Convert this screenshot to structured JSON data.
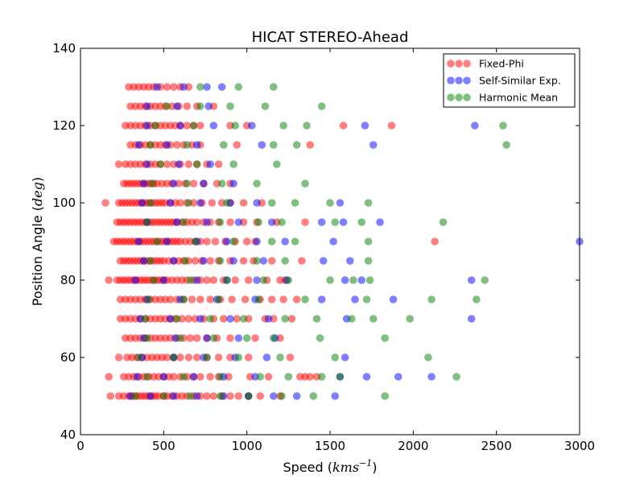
{
  "chart_data": {
    "type": "scatter",
    "title": "HICAT STEREO-Ahead",
    "xlabel": "Speed",
    "xlabel_unit": "kms",
    "xlabel_unit_exp": "−1",
    "ylabel": "Position Angle",
    "ylabel_unit": "deg",
    "xlim": [
      0,
      3000
    ],
    "ylim": [
      40,
      140
    ],
    "x_ticks": [
      "0",
      "500",
      "1000",
      "1500",
      "2000",
      "2500",
      "3000"
    ],
    "y_ticks": [
      "40",
      "60",
      "80",
      "100",
      "120",
      "140"
    ],
    "legend_position": "top-right",
    "grid": false,
    "series": [
      {
        "name": "Fixed-Phi",
        "color": "#ff0000",
        "rows": [
          {
            "y": 50,
            "x": [
              180,
              230,
              260,
              290,
              310,
              330,
              350,
              370,
              390,
              410,
              430,
              450,
              470,
              500,
              520,
              550,
              580,
              610,
              640,
              680,
              720,
              760,
              800,
              850,
              900,
              950,
              1010,
              1080,
              1200
            ]
          },
          {
            "y": 55,
            "x": [
              170,
              260,
              290,
              320,
              350,
              380,
              410,
              440,
              470,
              500,
              530,
              560,
              600,
              640,
              680,
              720,
              780,
              830,
              890,
              1020,
              1130,
              1320,
              1350,
              1380,
              1420
            ]
          },
          {
            "y": 60,
            "x": [
              230,
              280,
              310,
              340,
              370,
              400,
              430,
              460,
              490,
              520,
              560,
              600,
              650,
              700,
              760,
              830,
              900,
              1010,
              1260
            ]
          },
          {
            "y": 65,
            "x": [
              270,
              300,
              330,
              360,
              390,
              420,
              450,
              480,
              510,
              540,
              580,
              620,
              660,
              700,
              760,
              820,
              900,
              1050,
              1200
            ]
          },
          {
            "y": 70,
            "x": [
              240,
              270,
              300,
              330,
              360,
              390,
              420,
              450,
              480,
              510,
              540,
              570,
              610,
              650,
              690,
              740,
              800,
              860,
              940,
              1010,
              1110,
              1160,
              1270
            ]
          },
          {
            "y": 75,
            "x": [
              240,
              270,
              300,
              330,
              360,
              390,
              420,
              450,
              480,
              510,
              540,
              580,
              620,
              670,
              720,
              780,
              840,
              910,
              990,
              1080,
              1150,
              1220,
              1300
            ]
          },
          {
            "y": 80,
            "x": [
              170,
              220,
              240,
              260,
              280,
              300,
              320,
              340,
              360,
              380,
              400,
              420,
              440,
              460,
              480,
              500,
              520,
              550,
              580,
              610,
              640,
              680,
              720,
              760,
              800,
              860,
              930,
              1010,
              1120,
              1200,
              1230
            ]
          },
          {
            "y": 85,
            "x": [
              240,
              260,
              280,
              300,
              320,
              340,
              360,
              380,
              400,
              420,
              440,
              460,
              480,
              500,
              530,
              560,
              590,
              620,
              650,
              690,
              730,
              780,
              830,
              900,
              980,
              1040,
              1150,
              1330
            ]
          },
          {
            "y": 90,
            "x": [
              200,
              220,
              240,
              260,
              280,
              300,
              320,
              340,
              360,
              380,
              400,
              420,
              440,
              460,
              480,
              500,
              520,
              540,
              560,
              580,
              600,
              630,
              660,
              690,
              720,
              760,
              810,
              870,
              930,
              1000,
              1050,
              2130
            ]
          },
          {
            "y": 95,
            "x": [
              220,
              240,
              260,
              280,
              300,
              320,
              340,
              360,
              380,
              400,
              420,
              440,
              460,
              480,
              500,
              520,
              540,
              560,
              580,
              610,
              640,
              670,
              700,
              740,
              780,
              830,
              900,
              980,
              1060,
              1180,
              1350
            ]
          },
          {
            "y": 100,
            "x": [
              150,
              230,
              250,
              270,
              290,
              310,
              330,
              350,
              370,
              390,
              410,
              430,
              450,
              470,
              490,
              510,
              540,
              570,
              600,
              640,
              680,
              730,
              790,
              850,
              900,
              980,
              1090
            ]
          },
          {
            "y": 105,
            "x": [
              260,
              280,
              300,
              320,
              340,
              360,
              380,
              400,
              420,
              440,
              460,
              490,
              520,
              550,
              590,
              630,
              680,
              740,
              820,
              900
            ]
          },
          {
            "y": 110,
            "x": [
              230,
              270,
              300,
              330,
              360,
              390,
              420,
              450,
              480,
              520,
              560,
              600,
              650,
              700,
              760,
              830
            ]
          },
          {
            "y": 115,
            "x": [
              300,
              330,
              360,
              390,
              420,
              450,
              480,
              510,
              540,
              580,
              620,
              670,
              720,
              940,
              1380
            ]
          },
          {
            "y": 120,
            "x": [
              270,
              300,
              330,
              360,
              390,
              420,
              450,
              480,
              510,
              540,
              570,
              600,
              640,
              680,
              720,
              900,
              1000,
              1580,
              1870
            ]
          },
          {
            "y": 125,
            "x": [
              300,
              330,
              360,
              390,
              420,
              450,
              480,
              510,
              550,
              590,
              640,
              700,
              800
            ]
          },
          {
            "y": 130,
            "x": [
              290,
              320,
              350,
              380,
              410,
              440,
              480,
              520,
              560,
              600,
              650
            ]
          }
        ]
      },
      {
        "name": "Self-Similar Exp.",
        "color": "#0000ff",
        "rows": [
          {
            "y": 50,
            "x": [
              300,
              420,
              560,
              700,
              860,
              1010,
              1160,
              1300,
              1530
            ]
          },
          {
            "y": 55,
            "x": [
              340,
              500,
              680,
              860,
              1050,
              1560,
              1720,
              1910,
              2110
            ]
          },
          {
            "y": 60,
            "x": [
              370,
              560,
              740,
              930,
              1120,
              1590
            ]
          },
          {
            "y": 65,
            "x": [
              380,
              570,
              760,
              950,
              1170
            ]
          },
          {
            "y": 70,
            "x": [
              360,
              540,
              720,
              900,
              1130,
              1600,
              2350
            ]
          },
          {
            "y": 75,
            "x": [
              400,
              600,
              820,
              1050,
              1450,
              1650,
              1880
            ]
          },
          {
            "y": 80,
            "x": [
              330,
              500,
              700,
              880,
              1060,
              1240,
              1590,
              1690,
              2350
            ]
          },
          {
            "y": 85,
            "x": [
              380,
              560,
              740,
              920,
              1100,
              1460,
              1620
            ]
          },
          {
            "y": 90,
            "x": [
              350,
              520,
              700,
              880,
              1060,
              1230,
              1520,
              3000
            ]
          },
          {
            "y": 95,
            "x": [
              400,
              580,
              760,
              950,
              1150,
              1450,
              1580,
              1800
            ]
          },
          {
            "y": 100,
            "x": [
              370,
              540,
              720,
              900,
              1060,
              1560
            ]
          },
          {
            "y": 105,
            "x": [
              380,
              560,
              740,
              920
            ]
          },
          {
            "y": 110,
            "x": [
              400,
              590,
              780
            ]
          },
          {
            "y": 115,
            "x": [
              350,
              520,
              700,
              1090,
              1760
            ]
          },
          {
            "y": 120,
            "x": [
              400,
              600,
              800,
              1030,
              1710,
              2370
            ]
          },
          {
            "y": 125,
            "x": [
              400,
              580,
              770
            ]
          },
          {
            "y": 130,
            "x": [
              460,
              620,
              760,
              850
            ]
          }
        ]
      },
      {
        "name": "Harmonic Mean",
        "color": "#008000",
        "rows": [
          {
            "y": 50,
            "x": [
              330,
              500,
              660,
              840,
              1010,
              1210,
              1400,
              1830
            ]
          },
          {
            "y": 55,
            "x": [
              400,
              620,
              840,
              1080,
              1250,
              1450,
              1560,
              2260
            ]
          },
          {
            "y": 60,
            "x": [
              350,
              560,
              760,
              950,
              1200,
              1530,
              2090
            ]
          },
          {
            "y": 65,
            "x": [
              400,
              600,
              800,
              1000,
              1160,
              1440,
              1830
            ]
          },
          {
            "y": 70,
            "x": [
              390,
              580,
              780,
              980,
              1230,
              1420,
              1630,
              1760,
              1980
            ]
          },
          {
            "y": 75,
            "x": [
              410,
              620,
              830,
              1070,
              1350,
              1720,
              2110,
              2380
            ]
          },
          {
            "y": 80,
            "x": [
              440,
              660,
              880,
              1100,
              1250,
              1500,
              1640,
              1740,
              2430
            ]
          },
          {
            "y": 85,
            "x": [
              420,
              630,
              840,
              1060,
              1230,
              1730
            ]
          },
          {
            "y": 90,
            "x": [
              460,
              690,
              920,
              1150,
              1290,
              1730
            ]
          },
          {
            "y": 95,
            "x": [
              400,
              620,
              840,
              1070,
              1210,
              1530,
              1690,
              2180
            ]
          },
          {
            "y": 100,
            "x": [
              420,
              650,
              880,
              1150,
              1290,
              1500,
              1730
            ]
          },
          {
            "y": 105,
            "x": [
              430,
              640,
              850,
              1060,
              1350
            ]
          },
          {
            "y": 110,
            "x": [
              480,
              700,
              920,
              1180
            ]
          },
          {
            "y": 115,
            "x": [
              420,
              640,
              860,
              1160,
              1300,
              2560
            ]
          },
          {
            "y": 120,
            "x": [
              450,
              680,
              930,
              1220,
              1360,
              2540
            ]
          },
          {
            "y": 125,
            "x": [
              520,
              720,
              900,
              1110,
              1450
            ]
          },
          {
            "y": 130,
            "x": [
              720,
              950,
              1160
            ]
          }
        ]
      }
    ]
  }
}
